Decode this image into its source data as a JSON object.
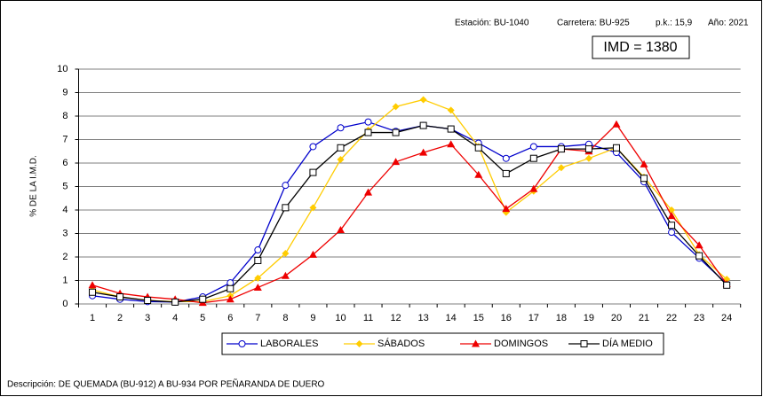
{
  "chart_data": {
    "type": "line",
    "station": "Estación: BU-1040",
    "road": "Carretera: BU-925",
    "pk": "p.k.: 15,9",
    "year": "Año: 2021",
    "imd": "IMD = 1380",
    "ylabel": "% DE LA I.M.D.",
    "description": "Descripción: DE QUEMADA (BU-912) A BU-934 POR PEÑARANDA DE DUERO",
    "categories": [
      "1",
      "2",
      "3",
      "4",
      "5",
      "6",
      "7",
      "8",
      "9",
      "10",
      "11",
      "12",
      "13",
      "14",
      "15",
      "16",
      "17",
      "18",
      "19",
      "20",
      "21",
      "22",
      "23",
      "24"
    ],
    "ylim": [
      0,
      10
    ],
    "yticks": [
      0,
      1,
      2,
      3,
      4,
      5,
      6,
      7,
      8,
      9,
      10
    ],
    "grid": true,
    "series": [
      {
        "name": "LABORALES",
        "color": "#0000cc",
        "marker": "circle",
        "values": [
          0.35,
          0.2,
          0.1,
          0.08,
          0.3,
          0.9,
          2.3,
          5.05,
          6.7,
          7.5,
          7.75,
          7.35,
          7.6,
          7.45,
          6.85,
          6.2,
          6.7,
          6.7,
          6.8,
          6.45,
          5.2,
          3.05,
          1.95,
          0.85
        ]
      },
      {
        "name": "SÁBADOS",
        "color": "#ffcc00",
        "marker": "diamond",
        "values": [
          0.6,
          0.3,
          0.15,
          0.1,
          0.1,
          0.35,
          1.1,
          2.15,
          4.1,
          6.15,
          7.4,
          8.4,
          8.7,
          8.25,
          6.7,
          3.9,
          4.8,
          5.8,
          6.2,
          6.65,
          5.4,
          4.0,
          2.1,
          1.05
        ]
      },
      {
        "name": "DOMINGOS",
        "color": "#ee0000",
        "marker": "triangle",
        "values": [
          0.8,
          0.45,
          0.3,
          0.2,
          0.05,
          0.2,
          0.7,
          1.2,
          2.1,
          3.15,
          4.75,
          6.05,
          6.45,
          6.8,
          5.5,
          4.05,
          4.9,
          6.6,
          6.5,
          7.65,
          5.95,
          3.75,
          2.5,
          0.85
        ]
      },
      {
        "name": "DÍA MEDIO",
        "color": "#000000",
        "marker": "square",
        "values": [
          0.5,
          0.3,
          0.15,
          0.08,
          0.2,
          0.65,
          1.85,
          4.1,
          5.6,
          6.65,
          7.3,
          7.3,
          7.6,
          7.45,
          6.65,
          5.55,
          6.2,
          6.6,
          6.6,
          6.65,
          5.35,
          3.35,
          2.05,
          0.8
        ]
      }
    ]
  }
}
